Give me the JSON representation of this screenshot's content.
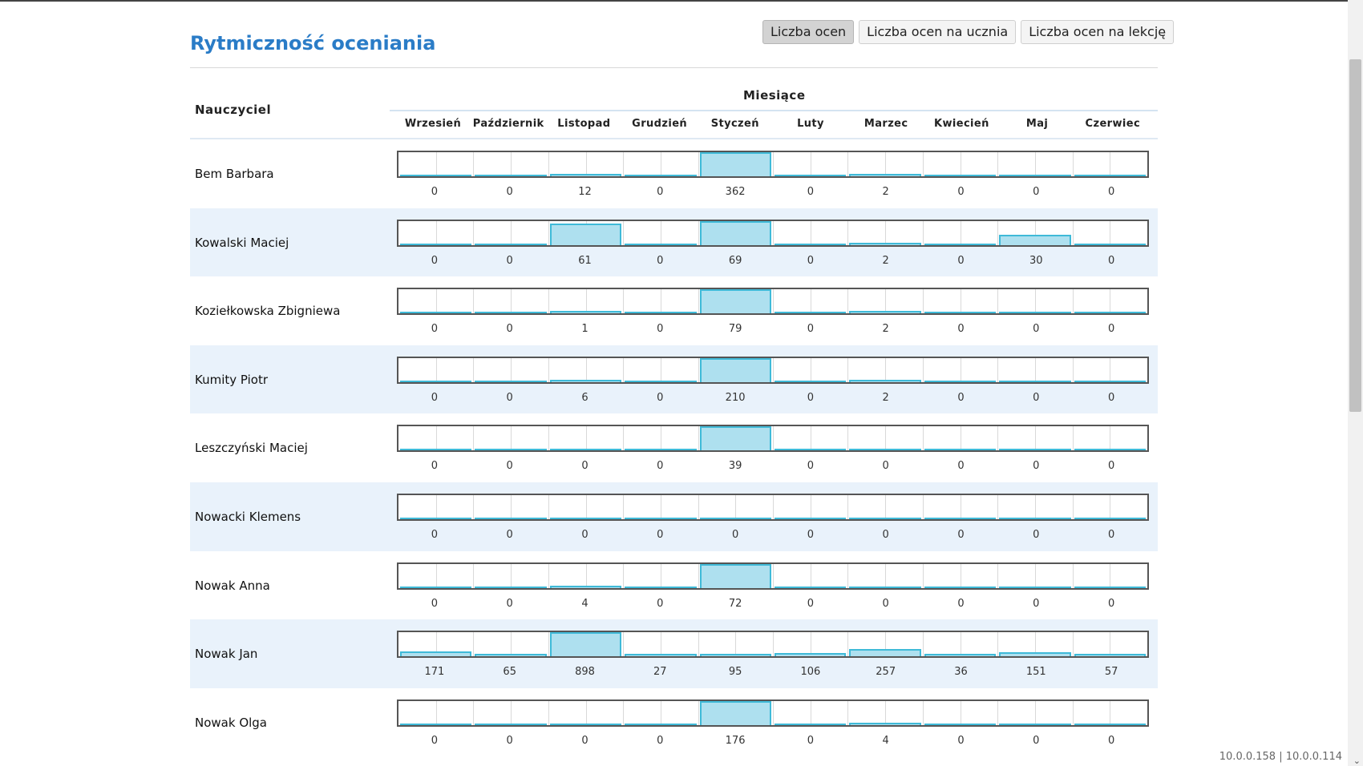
{
  "title": "Rytmiczność oceniania",
  "toolbar": {
    "buttons": [
      {
        "label": "Liczba ocen",
        "active": true
      },
      {
        "label": "Liczba ocen na ucznia",
        "active": false
      },
      {
        "label": "Liczba ocen na lekcję",
        "active": false
      }
    ]
  },
  "table": {
    "teacher_header": "Nauczyciel",
    "months_header": "Miesiące",
    "months": [
      "Wrzesień",
      "Październik",
      "Listopad",
      "Grudzień",
      "Styczeń",
      "Luty",
      "Marzec",
      "Kwiecień",
      "Maj",
      "Czerwiec"
    ],
    "rows": [
      {
        "teacher": "Bem Barbara",
        "counts": [
          0,
          0,
          12,
          0,
          362,
          0,
          2,
          0,
          0,
          0
        ]
      },
      {
        "teacher": "Kowalski Maciej",
        "counts": [
          0,
          0,
          61,
          0,
          69,
          0,
          2,
          0,
          30,
          0
        ]
      },
      {
        "teacher": "Koziełkowska Zbigniewa",
        "counts": [
          0,
          0,
          1,
          0,
          79,
          0,
          2,
          0,
          0,
          0
        ]
      },
      {
        "teacher": "Kumity Piotr",
        "counts": [
          0,
          0,
          6,
          0,
          210,
          0,
          2,
          0,
          0,
          0
        ]
      },
      {
        "teacher": "Leszczyński Maciej",
        "counts": [
          0,
          0,
          0,
          0,
          39,
          0,
          0,
          0,
          0,
          0
        ]
      },
      {
        "teacher": "Nowacki Klemens",
        "counts": [
          0,
          0,
          0,
          0,
          0,
          0,
          0,
          0,
          0,
          0
        ]
      },
      {
        "teacher": "Nowak Anna",
        "counts": [
          0,
          0,
          4,
          0,
          72,
          0,
          0,
          0,
          0,
          0
        ]
      },
      {
        "teacher": "Nowak Jan",
        "counts": [
          171,
          65,
          898,
          27,
          95,
          106,
          257,
          36,
          151,
          57
        ]
      },
      {
        "teacher": "Nowak Olga",
        "counts": [
          0,
          0,
          0,
          0,
          176,
          0,
          4,
          0,
          0,
          0
        ]
      }
    ]
  },
  "colors": {
    "accent": "#2a7cc7",
    "bar_fill": "#aee0ef",
    "bar_stroke": "#3fbad8",
    "row_alt": "#e9f2fb"
  },
  "footer": {
    "ip_text": "10.0.0.158 | 10.0.0.114"
  }
}
